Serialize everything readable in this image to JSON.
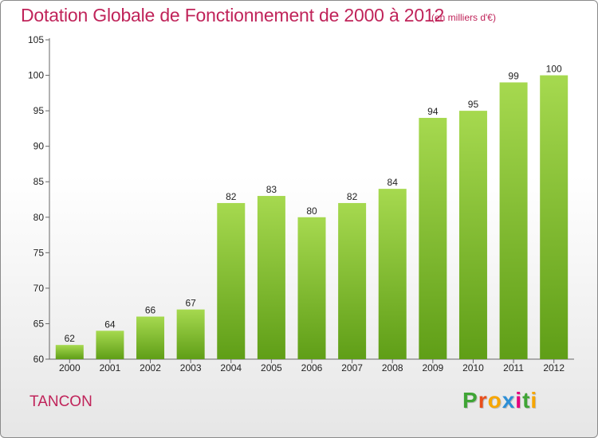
{
  "header": {
    "title": "Dotation Globale de Fonctionnement de 2000 à 2012",
    "unit": "(en milliers d'€)"
  },
  "footer": {
    "town": "TANCON",
    "logo_letters": [
      "P",
      "r",
      "o",
      "x",
      "i",
      "t",
      "i"
    ],
    "logo_colors": [
      "#3fa535",
      "#e94e1b",
      "#f7a600",
      "#2d8fd6",
      "#e5007e",
      "#3fa535",
      "#f7a600"
    ]
  },
  "colors": {
    "bar_top": "#a6d94f",
    "bar_bottom": "#5f9e17",
    "accent": "#c0245a"
  },
  "chart_data": {
    "type": "bar",
    "title": "Dotation Globale de Fonctionnement de 2000 à 2012",
    "categories": [
      "2000",
      "2001",
      "2002",
      "2003",
      "2004",
      "2005",
      "2006",
      "2007",
      "2008",
      "2009",
      "2010",
      "2011",
      "2012"
    ],
    "values": [
      62,
      64,
      66,
      67,
      82,
      83,
      80,
      82,
      84,
      94,
      95,
      99,
      100
    ],
    "ylim": [
      60,
      105
    ],
    "yticks": [
      60,
      65,
      70,
      75,
      80,
      85,
      90,
      95,
      100,
      105
    ],
    "grid": false,
    "legend": "none"
  }
}
